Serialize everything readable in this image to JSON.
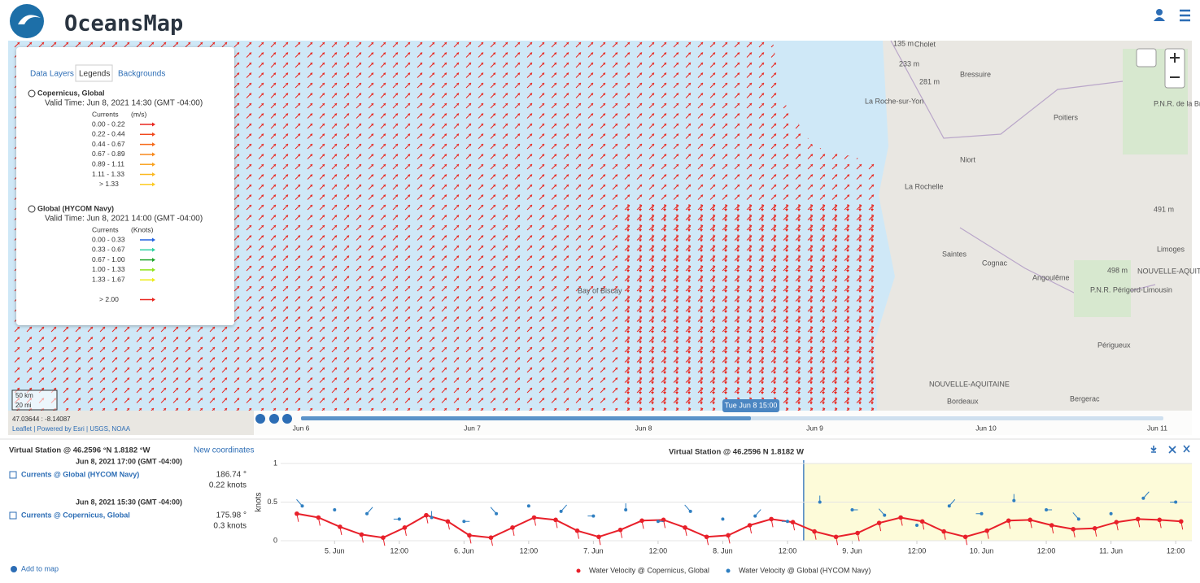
{
  "header": {
    "title": "OceansMap"
  },
  "map": {
    "tabs": [
      "Data Layers",
      "Legends",
      "Backgrounds"
    ],
    "legends": [
      {
        "title": "Copernicus, Global",
        "valid_time": "Valid Time: Jun 8, 2021 14:30 (GMT -04:00)",
        "variable": "Currents",
        "unit": "(m/s)",
        "ranges": [
          {
            "label": "0.00 - 0.22",
            "color": "#e8261f"
          },
          {
            "label": "0.22 - 0.44",
            "color": "#f0481c"
          },
          {
            "label": "0.44 - 0.67",
            "color": "#f56a1a"
          },
          {
            "label": "0.67 - 0.89",
            "color": "#f7891c"
          },
          {
            "label": "0.89 - 1.11",
            "color": "#f9a21e"
          },
          {
            "label": "1.11 - 1.33",
            "color": "#fbb820"
          },
          {
            "label": "> 1.33",
            "color": "#fccb22"
          }
        ]
      },
      {
        "title": "Global (HYCOM Navy)",
        "valid_time": "Valid Time: Jun 8, 2021 14:00 (GMT -04:00)",
        "variable": "Currents",
        "unit": "(Knots)",
        "ranges": [
          {
            "label": "0.00 - 0.33",
            "color": "#2463e0"
          },
          {
            "label": "0.33 - 0.67",
            "color": "#2ed0a0"
          },
          {
            "label": "0.67 - 1.00",
            "color": "#1fa32b"
          },
          {
            "label": "1.00 - 1.33",
            "color": "#8ee21c"
          },
          {
            "label": "1.33 - 1.67",
            "color": "#ecec1a"
          },
          {
            "label": "> 2.00",
            "color": "#e8261f"
          }
        ]
      }
    ],
    "places": [
      "Cholet",
      "135 m",
      "233 m",
      "Bressuire",
      "281 m",
      "La Roche-sur-Yon",
      "Poitiers",
      "P.N.R. de la Brenne",
      "Niort",
      "La Rochelle",
      "491 m",
      "Limoges",
      "Saintes",
      "Cognac",
      "Angoulême",
      "498 m",
      "NOUVELLE-AQUITAINE",
      "P.N.R. Périgord-Limousin",
      "Bay of Biscay",
      "Périgueux",
      "NOUVELLE-AQUITAINE",
      "Bordeaux",
      "Bergerac"
    ],
    "scale": [
      "50 km",
      "20 mi"
    ],
    "coordinates": "47.03644 : -8.14087",
    "attribution": "Leaflet | Powered by Esri | USGS, NOAA"
  },
  "timeline": {
    "labels": [
      "Jun 6",
      "Jun 7",
      "Jun 8",
      "Jun 9",
      "Jun 10",
      "Jun 11"
    ],
    "current": "Tue Jun 8 15:00"
  },
  "station": {
    "title": "Virtual Station @ 46.2596 °N 1.8182 °W",
    "new_coordinates": "New coordinates",
    "layers": [
      {
        "time": "Jun 8, 2021 17:00 (GMT -04:00)",
        "name": "Currents @ Global (HYCOM Navy)",
        "direction": "186.74 °",
        "speed": "0.22 knots"
      },
      {
        "time": "Jun 8, 2021 15:30 (GMT -04:00)",
        "name": "Currents @ Copernicus, Global",
        "direction": "175.98 °",
        "speed": "0.3 knots"
      }
    ],
    "add": "Add to map"
  },
  "chart_data": {
    "type": "line",
    "title": "Virtual Station @ 46.2596 N 1.8182 W",
    "y_label": "knots",
    "xlim": [
      "2021-06-04T14:00",
      "2021-06-11T15:00"
    ],
    "xticks": [
      {
        "value": "2021-06-05T00:00",
        "label": "5. Jun"
      },
      {
        "value": "2021-06-05T12:00",
        "label": "12:00"
      },
      {
        "value": "2021-06-06T00:00",
        "label": "6. Jun"
      },
      {
        "value": "2021-06-06T12:00",
        "label": "12:00"
      },
      {
        "value": "2021-06-07T00:00",
        "label": "7. Jun"
      },
      {
        "value": "2021-06-07T12:00",
        "label": "12:00"
      },
      {
        "value": "2021-06-08T00:00",
        "label": "8. Jun"
      },
      {
        "value": "2021-06-08T12:00",
        "label": "12:00"
      },
      {
        "value": "2021-06-09T00:00",
        "label": "9. Jun"
      },
      {
        "value": "2021-06-09T12:00",
        "label": "12:00"
      },
      {
        "value": "2021-06-10T00:00",
        "label": "10. Jun"
      },
      {
        "value": "2021-06-10T12:00",
        "label": "12:00"
      },
      {
        "value": "2021-06-11T00:00",
        "label": "11. Jun"
      },
      {
        "value": "2021-06-11T12:00",
        "label": "12:00"
      }
    ],
    "ylim": [
      0,
      1
    ],
    "yticks": [
      0,
      0.5,
      1
    ],
    "grid": true,
    "forecast_start": "2021-06-08T15:00",
    "series": [
      {
        "name": "Water Velocity @ Copernicus, Global",
        "color": "#e8202a",
        "x": [
          "2021-06-04T17:00",
          "2021-06-04T21:00",
          "2021-06-05T01:00",
          "2021-06-05T05:00",
          "2021-06-05T09:00",
          "2021-06-05T13:00",
          "2021-06-05T17:00",
          "2021-06-05T21:00",
          "2021-06-06T01:00",
          "2021-06-06T05:00",
          "2021-06-06T09:00",
          "2021-06-06T13:00",
          "2021-06-06T17:00",
          "2021-06-06T21:00",
          "2021-06-07T01:00",
          "2021-06-07T05:00",
          "2021-06-07T09:00",
          "2021-06-07T13:00",
          "2021-06-07T17:00",
          "2021-06-07T21:00",
          "2021-06-08T01:00",
          "2021-06-08T05:00",
          "2021-06-08T09:00",
          "2021-06-08T13:00",
          "2021-06-08T17:00",
          "2021-06-08T21:00",
          "2021-06-09T01:00",
          "2021-06-09T05:00",
          "2021-06-09T09:00",
          "2021-06-09T13:00",
          "2021-06-09T17:00",
          "2021-06-09T21:00",
          "2021-06-10T01:00",
          "2021-06-10T05:00",
          "2021-06-10T09:00",
          "2021-06-10T13:00",
          "2021-06-10T17:00",
          "2021-06-10T21:00",
          "2021-06-11T01:00",
          "2021-06-11T05:00",
          "2021-06-11T09:00",
          "2021-06-11T13:00"
        ],
        "values": [
          0.35,
          0.3,
          0.18,
          0.08,
          0.04,
          0.17,
          0.33,
          0.25,
          0.07,
          0.04,
          0.17,
          0.3,
          0.27,
          0.13,
          0.05,
          0.14,
          0.26,
          0.27,
          0.17,
          0.05,
          0.07,
          0.2,
          0.28,
          0.24,
          0.12,
          0.05,
          0.1,
          0.23,
          0.3,
          0.25,
          0.12,
          0.05,
          0.13,
          0.26,
          0.27,
          0.2,
          0.15,
          0.16,
          0.24,
          0.28,
          0.27,
          0.25
        ]
      },
      {
        "name": "Water Velocity @ Global (HYCOM Navy)",
        "color": "#2f7fc1",
        "x": [
          "2021-06-04T18:00",
          "2021-06-05T00:00",
          "2021-06-05T06:00",
          "2021-06-05T12:00",
          "2021-06-05T18:00",
          "2021-06-06T00:00",
          "2021-06-06T06:00",
          "2021-06-06T12:00",
          "2021-06-06T18:00",
          "2021-06-07T00:00",
          "2021-06-07T06:00",
          "2021-06-07T12:00",
          "2021-06-07T18:00",
          "2021-06-08T00:00",
          "2021-06-08T06:00",
          "2021-06-08T12:00",
          "2021-06-08T18:00",
          "2021-06-09T00:00",
          "2021-06-09T06:00",
          "2021-06-09T12:00",
          "2021-06-09T18:00",
          "2021-06-10T00:00",
          "2021-06-10T06:00",
          "2021-06-10T12:00",
          "2021-06-10T18:00",
          "2021-06-11T00:00",
          "2021-06-11T06:00",
          "2021-06-11T12:00"
        ],
        "values": [
          0.45,
          0.4,
          0.35,
          0.28,
          0.3,
          0.25,
          0.35,
          0.45,
          0.38,
          0.32,
          0.4,
          0.25,
          0.38,
          0.28,
          0.32,
          0.25,
          0.5,
          0.4,
          0.33,
          0.2,
          0.45,
          0.35,
          0.52,
          0.4,
          0.28,
          0.35,
          0.55,
          0.5
        ]
      }
    ]
  }
}
